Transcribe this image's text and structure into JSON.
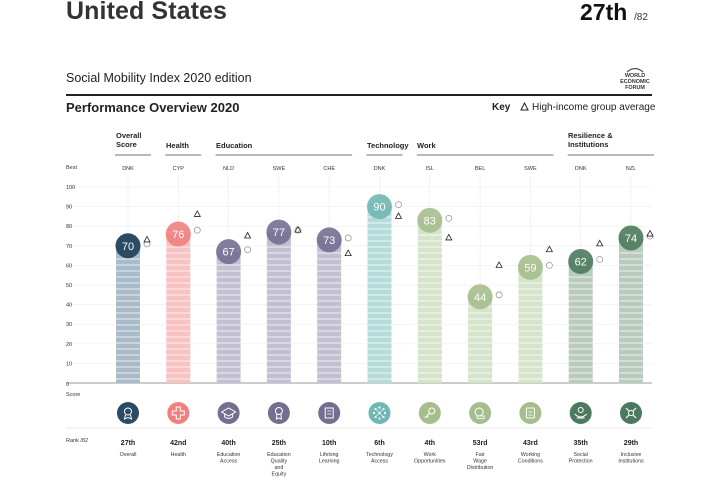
{
  "header": {
    "country": "United States",
    "rank": "27th",
    "rank_of": "/82",
    "edition": "Social Mobility Index 2020 edition",
    "org_logo_lines": [
      "WORLD",
      "ECONOMIC",
      "FORUM"
    ]
  },
  "section": {
    "title": "Performance Overview 2020",
    "key_label": "Key",
    "key_text": "High-income group average"
  },
  "groups": [
    {
      "name": "Overall Score"
    },
    {
      "name": "Health"
    },
    {
      "name": "Education"
    },
    {
      "name": "Technology"
    },
    {
      "name": "Work"
    },
    {
      "name": "Resilience & Institutions"
    }
  ],
  "row_labels": {
    "best": "Best",
    "score": "Score",
    "rank": "Rank /82",
    "zero": "0"
  },
  "chart_data": {
    "type": "bar",
    "title": "Performance Overview 2020",
    "ylim": [
      0,
      100
    ],
    "yticks": [
      10,
      20,
      30,
      40,
      50,
      60,
      70,
      80,
      90,
      100
    ],
    "ylabel": "Score",
    "categories": [
      "Overall",
      "Health",
      "Education Access",
      "Education Quality and Equity",
      "Lifelong Learning",
      "Technology Access",
      "Work Opportunities",
      "Fair Wage Distribution",
      "Working Conditions",
      "Social Protection",
      "Inclusive Institutions"
    ],
    "best": [
      "DNK",
      "CYP",
      "NLD",
      "SWE",
      "CHE",
      "DNK",
      "ISL",
      "BEL",
      "SWE",
      "DNK",
      "NZL"
    ],
    "series": [
      {
        "name": "United States score",
        "values": [
          70,
          76,
          67,
          77,
          73,
          90,
          83,
          44,
          59,
          62,
          74
        ]
      },
      {
        "name": "Best performer score",
        "values": [
          71,
          78,
          68,
          78,
          74,
          91,
          84,
          45,
          60,
          63,
          75
        ]
      },
      {
        "name": "High-income group average",
        "values": [
          73,
          86,
          75,
          78,
          66,
          85,
          74,
          60,
          68,
          71,
          76
        ]
      }
    ],
    "ranks": [
      "27th",
      "42nd",
      "40th",
      "25th",
      "10th",
      "6th",
      "4th",
      "53rd",
      "43rd",
      "35th",
      "29th"
    ],
    "colors": [
      "#2b4a63",
      "#f07f80",
      "#736f91",
      "#736f91",
      "#736f91",
      "#6fb7b4",
      "#a6be8e",
      "#a6be8e",
      "#a6be8e",
      "#4c7a5d",
      "#4c7a5d"
    ],
    "light_colors": [
      "#a9bac9",
      "#f8c2c2",
      "#c2c0d1",
      "#c2c0d1",
      "#c2c0d1",
      "#b6dcda",
      "#d7e4cc",
      "#d7e4cc",
      "#d7e4cc",
      "#b9cbbd",
      "#b9cbbd"
    ],
    "icons": [
      "medal-icon",
      "medical-cross-icon",
      "graduation-cap-icon",
      "award-ribbon-icon",
      "book-icon",
      "network-icon",
      "key-icon",
      "coins-icon",
      "clipboard-icon",
      "hands-people-icon",
      "institution-icon"
    ]
  }
}
